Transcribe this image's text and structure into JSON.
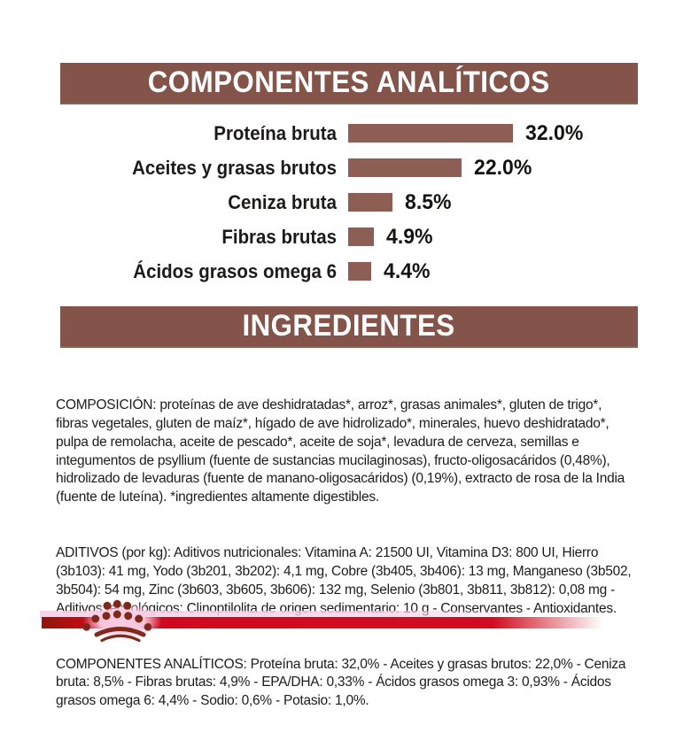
{
  "colors": {
    "band_brown": "#84544A",
    "bar_brown": "#8D5E53",
    "band_text": "#FFFFFF",
    "body_text": "#1D1C1A",
    "line_red": "#CE0A1D",
    "line_red_dark": "#8F170D",
    "crown_maroon": "#7E2A1B",
    "halo_pink": "#FAD2E6"
  },
  "section_analytics": {
    "title": "COMPONENTES ANALÍTICOS"
  },
  "chart_data": {
    "type": "bar",
    "orientation": "horizontal",
    "title": "COMPONENTES ANALÍTICOS",
    "categories": [
      "Proteína bruta",
      "Aceites y grasas brutos",
      "Ceniza bruta",
      "Fibras brutas",
      "Ácidos grasos omega 6"
    ],
    "values": [
      32.0,
      22.0,
      8.5,
      4.9,
      4.4
    ],
    "display_values": [
      "32.0%",
      "22.0%",
      "8.5%",
      "4.9%",
      "4.4%"
    ],
    "unit": "%",
    "xlim": [
      0,
      32
    ],
    "bar_color": "#8D5E53",
    "grid": false,
    "value_labels": "end-of-bar"
  },
  "section_ingredients": {
    "title": "INGREDIENTES",
    "composition_lines": [
      "COMPOSICIÓN: proteínas de ave deshidratadas*, arroz*, grasas animales*, gluten de trigo*,",
      "fibras vegetales, gluten de maíz*, hígado de ave hidrolizado*, minerales, huevo deshidratado*,",
      "pulpa de remolacha, aceite de pescado*, aceite de soja*, levadura de cerveza, semillas e",
      "integumentos de psyllium (fuente de sustancias mucilaginosas), fructo-oligosacáridos (0,48%),",
      "hidrolizado de levaduras (fuente de manano-oligosacáridos) (0,19%), extracto de rosa de la India",
      "(fuente de luteína). *ingredientes altamente digestibles."
    ],
    "additives_lines": [
      "ADITIVOS (por kg): Aditivos nutricionales: Vitamina A: 21500 UI, Vitamina D3: 800 UI, Hierro",
      "(3b103): 41 mg, Yodo (3b201, 3b202): 4,1 mg, Cobre (3b405, 3b406): 13 mg, Manganeso (3b502,",
      "3b504): 54 mg, Zinc (3b603, 3b605, 3b606): 132 mg, Selenio (3b801, 3b811, 3b812): 0,08 mg -",
      "Aditivos tecnológicos: Clinoptilolita de origen sedimentario: 10 g - Conservantes - Antioxidantes."
    ],
    "analytics_lines": [
      "COMPONENTES ANALÍTICOS: Proteína bruta: 32,0% - Aceites y grasas brutos: 22,0% - Ceniza",
      "bruta: 8,5% - Fibras brutas: 4,9% - EPA/DHA: 0,33% - Ácidos grasos omega 3: 0,93% - Ácidos",
      "grasos omega 6: 4,4% - Sodio: 0,6% - Potasio: 1,0%."
    ]
  },
  "footer": {
    "brand_mark": "royal-canin-crown-logo"
  }
}
